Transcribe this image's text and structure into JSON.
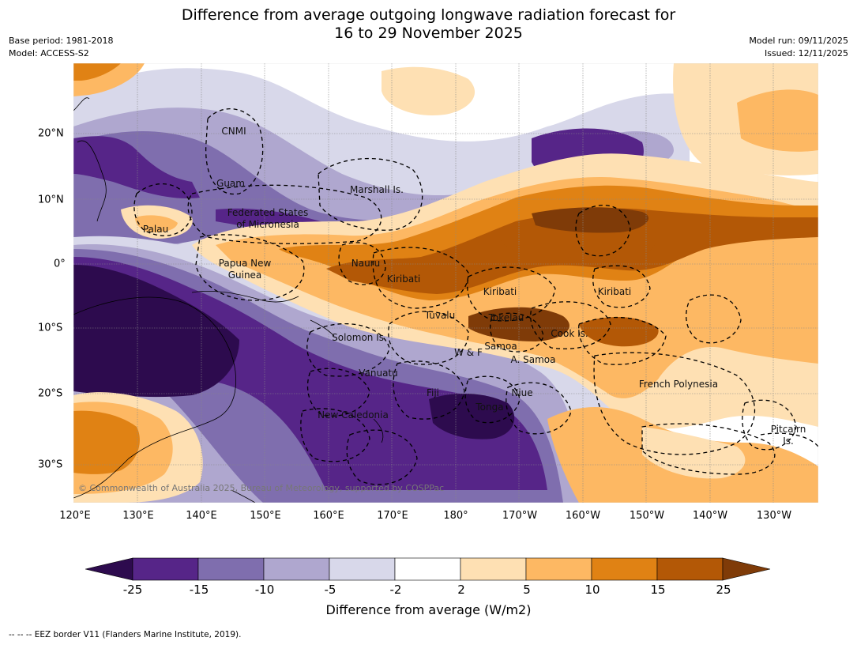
{
  "title_line1": "Difference from average outgoing longwave radiation forecast for",
  "title_line2": "16 to 29 November 2025",
  "base_period": "Base period: 1981-2018",
  "model": "Model: ACCESS-S2",
  "model_run": "Model run: 09/11/2025",
  "issued": "Issued: 12/11/2025",
  "copyright": "© Commonwealth of Australia 2025, Bureau of Meteorology, supported by COSPPac",
  "longitude_labels": [
    "120°E",
    "130°E",
    "140°E",
    "150°E",
    "160°E",
    "170°E",
    "180°",
    "170°W",
    "160°W",
    "150°W",
    "140°W",
    "130°W"
  ],
  "latitude_labels": [
    "20°N",
    "10°N",
    "0°",
    "10°S",
    "20°S",
    "30°S"
  ],
  "region_labels": {
    "cnmi": "CNMI",
    "guam": "Guam",
    "marshall": "Marshall Is.",
    "fsm1": "Federated States",
    "fsm2": "of Micronesia",
    "palau": "Palau",
    "png1": "Papua New",
    "png2": "Guinea",
    "nauru": "Nauru",
    "kiribati_w": "Kiribati",
    "kiribati_c": "Kiribati",
    "kiribati_e": "Kiribati",
    "tuvalu": "Tuvalu",
    "tokelau": "Tokelau",
    "cook": "Cook Is.",
    "solomon": "Solomon Is.",
    "samoa": "Samoa",
    "wf": "W & F",
    "asamoa": "A. Samoa",
    "vanuatu": "Vanuatu",
    "fiji": "Fiji",
    "niue": "Niue",
    "tonga": "Tonga",
    "fp": "French Polynesia",
    "newcal": "New Caledonia",
    "pitcairn1": "Pitcairn",
    "pitcairn2": "Is."
  },
  "colorbar": {
    "ticks": [
      "-25",
      "-15",
      "-10",
      "-5",
      "-2",
      "2",
      "5",
      "10",
      "15",
      "25"
    ],
    "colors": [
      "#2d0b4e",
      "#562588",
      "#7f6eae",
      "#afa7cf",
      "#d8d8ea",
      "#ffffff",
      "#fee0b3",
      "#fdb863",
      "#e08214",
      "#b35806",
      "#7f3b08"
    ],
    "title": "Difference from average (W/m2)"
  },
  "footnote": "--  --  -- EEZ border V11 (Flanders Marine Institute, 2019)."
}
